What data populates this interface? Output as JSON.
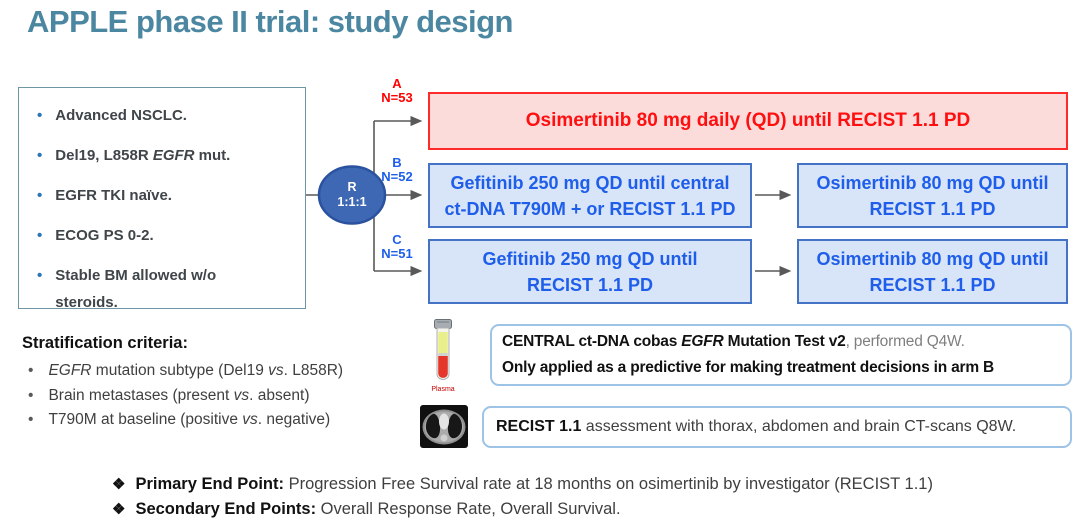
{
  "title": "APPLE phase II trial: study design",
  "colors": {
    "title_teal": "#4C87A1",
    "arm_a_red_text": "#FF0000",
    "arm_a_bg": "#FBDCDB",
    "arm_a_border": "#FF2B2B",
    "arm_blue_text": "#1E5EEA",
    "arm_blue_bg": "#D8E4F7",
    "arm_blue_border": "#4472C4",
    "randomization_node_fill": "#3E68B3",
    "eligibility_border": "#6E97A5",
    "note_box_border": "#9DC3E6",
    "connector_gray": "#595959",
    "bullet_blue": "#2E75B6"
  },
  "eligibility": {
    "bullet_glyph": "•",
    "items": [
      [
        {
          "t": "Advanced NSCLC."
        }
      ],
      [
        {
          "t": "Del19, L858R "
        },
        {
          "t": "EGFR",
          "i": true
        },
        {
          "t": " mut."
        }
      ],
      [
        {
          "t": "EGFR TKI naïve."
        }
      ],
      [
        {
          "t": "ECOG PS 0-2."
        }
      ],
      [
        {
          "t": "Stable BM allowed w/o steroids."
        }
      ]
    ]
  },
  "randomization": {
    "letter": "R",
    "ratio": "1:1:1"
  },
  "arms": {
    "a": {
      "label": "A",
      "n": "N=53",
      "box": "Osimertinib 80 mg daily (QD) until RECIST 1.1 PD"
    },
    "b": {
      "label": "B",
      "n": "N=52",
      "box1_line1": "Gefitinib 250 mg QD until central",
      "box1_line2": "ct-DNA T790M + or RECIST 1.1 PD",
      "box2_line1": "Osimertinib 80 mg QD until",
      "box2_line2": "RECIST 1.1 PD"
    },
    "c": {
      "label": "C",
      "n": "N=51",
      "box1_line1": "Gefitinib 250 mg QD until",
      "box1_line2": "RECIST 1.1 PD",
      "box2_line1": "Osimertinib 80 mg QD until",
      "box2_line2": "RECIST 1.1 PD"
    }
  },
  "stratification": {
    "heading": "Stratification criteria:",
    "bullet_glyph": "•",
    "items": [
      [
        {
          "t": "EGFR",
          "i": true
        },
        {
          "t": " mutation subtype (Del19 "
        },
        {
          "t": "vs",
          "i": true
        },
        {
          "t": ". L858R)"
        }
      ],
      [
        {
          "t": "Brain metastases (present "
        },
        {
          "t": "vs",
          "i": true
        },
        {
          "t": ". absent)"
        }
      ],
      [
        {
          "t": "T790M at baseline (positive "
        },
        {
          "t": "vs",
          "i": true
        },
        {
          "t": ". negative)"
        }
      ]
    ]
  },
  "notes": {
    "plasma_label": "Plasma",
    "central": [
      [
        {
          "t": "CENTRAL ct-DNA cobas ",
          "b": true
        },
        {
          "t": "EGFR",
          "b": true,
          "i": true
        },
        {
          "t": " Mutation Test v2",
          "b": true
        },
        {
          "t": ", performed Q4W.",
          "muted": true
        }
      ],
      [
        {
          "t": "Only applied as a predictive for making treatment decisions in arm B",
          "b": true
        }
      ]
    ],
    "recist": [
      [
        {
          "t": "RECIST 1.1",
          "b": true
        },
        {
          "t": " assessment with thorax, abdomen and brain CT-scans Q8W."
        }
      ]
    ]
  },
  "endpoints": {
    "marker": "❖",
    "items": [
      [
        {
          "t": "Primary End Point:",
          "b": true
        },
        {
          "t": " Progression Free Survival rate at 18 months on osimertinib by investigator (RECIST 1.1)"
        }
      ],
      [
        {
          "t": "Secondary End Points:",
          "b": true
        },
        {
          "t": " Overall Response Rate, Overall Survival."
        }
      ]
    ]
  }
}
